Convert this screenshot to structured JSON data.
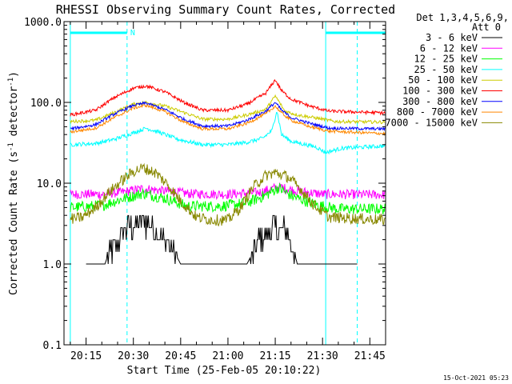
{
  "chart_data": {
    "type": "line",
    "title": "RHESSI Observing Summary Count Rates, Corrected",
    "xlabel": "Start Time (25-Feb-05 20:10:22)",
    "ylabel_main": "Corrected Count Rate (s",
    "ylabel_sup1": "-1",
    "ylabel_mid": " detector",
    "ylabel_sup2": "-1",
    "ylabel_end": ")",
    "yscale": "log",
    "ylim": [
      0.1,
      1000
    ],
    "xlim_min": [
      8,
      110
    ],
    "y_ticks": [
      "0.1",
      "1.0",
      "10.0",
      "100.0",
      "1000.0"
    ],
    "x_ticks": [
      {
        "label": "20:15",
        "min": 15
      },
      {
        "label": "20:30",
        "min": 30
      },
      {
        "label": "20:45",
        "min": 45
      },
      {
        "label": "21:00",
        "min": 60
      },
      {
        "label": "21:15",
        "min": 75
      },
      {
        "label": "21:30",
        "min": 90
      },
      {
        "label": "21:45",
        "min": 105
      }
    ],
    "legend_title_1": "Det 1,3,4,5,6,9,",
    "legend_title_2": "Att 0",
    "legend_position": "right",
    "timestamp": "15-Oct-2021 05:23",
    "night_label": "N",
    "markers": {
      "night": [
        {
          "from": 10,
          "to": 28
        },
        {
          "from": 91,
          "to": 110
        }
      ],
      "solid_lines_min": [
        10,
        91
      ],
      "dashed_lines_min": [
        28,
        101
      ]
    },
    "series": [
      {
        "name": "3 - 6 keV",
        "color": "#000000",
        "values": [
          [
            15,
            1.0
          ],
          [
            21,
            1.0
          ],
          [
            22,
            1.3
          ],
          [
            25,
            1.9
          ],
          [
            27,
            2.6
          ],
          [
            30,
            3.1
          ],
          [
            33,
            3.5
          ],
          [
            37,
            2.7
          ],
          [
            40,
            2.0
          ],
          [
            43,
            1.4
          ],
          [
            45,
            1.0
          ],
          [
            52,
            1.0
          ],
          [
            66,
            1.0
          ],
          [
            68,
            1.4
          ],
          [
            71,
            2.3
          ],
          [
            75,
            2.7
          ],
          [
            79,
            2.3
          ],
          [
            81,
            1.4
          ],
          [
            82,
            1.0
          ],
          [
            101,
            1.0
          ]
        ]
      },
      {
        "name": "6 - 12 keV",
        "color": "#ff00ff",
        "values": [
          [
            10,
            7.3
          ],
          [
            20,
            7.3
          ],
          [
            27,
            7.8
          ],
          [
            33,
            8.6
          ],
          [
            40,
            8.0
          ],
          [
            48,
            7.4
          ],
          [
            60,
            7.3
          ],
          [
            70,
            7.7
          ],
          [
            76,
            9.0
          ],
          [
            82,
            8.0
          ],
          [
            90,
            7.3
          ],
          [
            110,
            7.2
          ]
        ]
      },
      {
        "name": "12 - 25 keV",
        "color": "#00ff00",
        "values": [
          [
            10,
            5.0
          ],
          [
            20,
            5.3
          ],
          [
            26,
            6.3
          ],
          [
            33,
            7.5
          ],
          [
            40,
            6.5
          ],
          [
            47,
            5.2
          ],
          [
            58,
            5.2
          ],
          [
            66,
            5.7
          ],
          [
            72,
            7.1
          ],
          [
            76,
            8.8
          ],
          [
            80,
            7.0
          ],
          [
            88,
            5.4
          ],
          [
            95,
            4.8
          ],
          [
            110,
            4.8
          ]
        ]
      },
      {
        "name": "25 - 50 keV",
        "color": "#00ffff",
        "values": [
          [
            10,
            30
          ],
          [
            18,
            31
          ],
          [
            24,
            35
          ],
          [
            30,
            42
          ],
          [
            34,
            48
          ],
          [
            38,
            43
          ],
          [
            44,
            35
          ],
          [
            52,
            30
          ],
          [
            60,
            30
          ],
          [
            66,
            32
          ],
          [
            71,
            36
          ],
          [
            74,
            45
          ],
          [
            75.5,
            80
          ],
          [
            77,
            40
          ],
          [
            80,
            33
          ],
          [
            88,
            28
          ],
          [
            91,
            24
          ],
          [
            96,
            27
          ],
          [
            110,
            29
          ]
        ]
      },
      {
        "name": "50 - 100 keV",
        "color": "#cccc00",
        "values": [
          [
            10,
            58
          ],
          [
            18,
            60
          ],
          [
            24,
            75
          ],
          [
            30,
            95
          ],
          [
            34,
            100
          ],
          [
            40,
            90
          ],
          [
            46,
            75
          ],
          [
            52,
            62
          ],
          [
            60,
            62
          ],
          [
            66,
            70
          ],
          [
            72,
            82
          ],
          [
            75,
            120
          ],
          [
            76,
            105
          ],
          [
            78,
            78
          ],
          [
            82,
            70
          ],
          [
            88,
            64
          ],
          [
            94,
            58
          ],
          [
            110,
            57
          ]
        ]
      },
      {
        "name": "100 - 300 keV",
        "color": "#ff0000",
        "values": [
          [
            10,
            70
          ],
          [
            18,
            80
          ],
          [
            24,
            115
          ],
          [
            30,
            150
          ],
          [
            34,
            160
          ],
          [
            40,
            135
          ],
          [
            46,
            100
          ],
          [
            52,
            80
          ],
          [
            60,
            80
          ],
          [
            66,
            95
          ],
          [
            72,
            130
          ],
          [
            75,
            190
          ],
          [
            77,
            140
          ],
          [
            80,
            110
          ],
          [
            86,
            90
          ],
          [
            92,
            78
          ],
          [
            110,
            74
          ]
        ]
      },
      {
        "name": "300 - 800 keV",
        "color": "#0000ff",
        "values": [
          [
            10,
            47
          ],
          [
            18,
            53
          ],
          [
            24,
            72
          ],
          [
            30,
            92
          ],
          [
            34,
            98
          ],
          [
            40,
            82
          ],
          [
            46,
            62
          ],
          [
            52,
            51
          ],
          [
            60,
            51
          ],
          [
            66,
            60
          ],
          [
            72,
            78
          ],
          [
            75,
            100
          ],
          [
            77,
            80
          ],
          [
            80,
            65
          ],
          [
            86,
            55
          ],
          [
            92,
            48
          ],
          [
            110,
            47
          ]
        ]
      },
      {
        "name": "800 - 7000 keV",
        "color": "#ff8800",
        "values": [
          [
            10,
            43
          ],
          [
            18,
            48
          ],
          [
            24,
            65
          ],
          [
            30,
            85
          ],
          [
            34,
            92
          ],
          [
            40,
            77
          ],
          [
            46,
            57
          ],
          [
            52,
            47
          ],
          [
            60,
            47
          ],
          [
            66,
            55
          ],
          [
            72,
            72
          ],
          [
            75,
            90
          ],
          [
            77,
            74
          ],
          [
            80,
            60
          ],
          [
            86,
            50
          ],
          [
            92,
            44
          ],
          [
            110,
            41
          ]
        ]
      },
      {
        "name": "7000 - 15000 keV",
        "color": "#888800",
        "values": [
          [
            10,
            3.6
          ],
          [
            14,
            3.8
          ],
          [
            18,
            5.0
          ],
          [
            22,
            7.5
          ],
          [
            26,
            10.5
          ],
          [
            30,
            14.0
          ],
          [
            33,
            15.5
          ],
          [
            37,
            13.5
          ],
          [
            41,
            9.5
          ],
          [
            45,
            6.0
          ],
          [
            50,
            3.8
          ],
          [
            55,
            3.5
          ],
          [
            60,
            3.5
          ],
          [
            64,
            5.0
          ],
          [
            68,
            9.0
          ],
          [
            72,
            12.5
          ],
          [
            75,
            13.5
          ],
          [
            79,
            12.0
          ],
          [
            83,
            8.5
          ],
          [
            87,
            5.5
          ],
          [
            92,
            3.8
          ],
          [
            110,
            3.5
          ]
        ]
      }
    ]
  }
}
